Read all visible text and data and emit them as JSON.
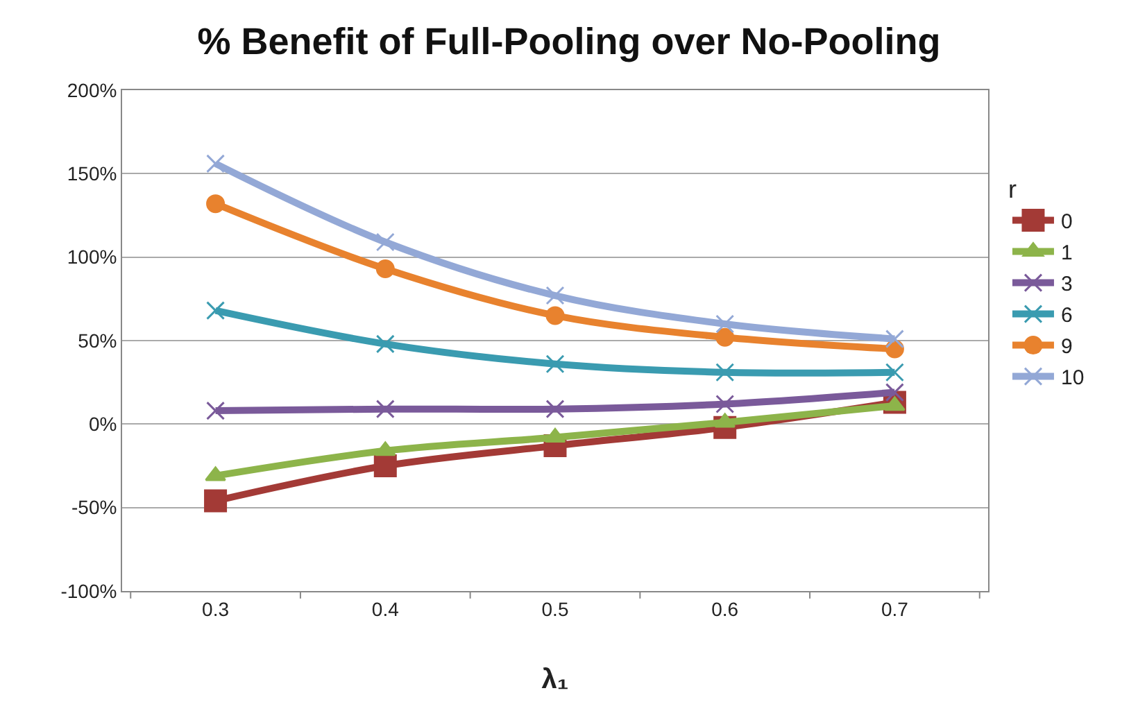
{
  "chart_data": {
    "type": "line",
    "title": "% Benefit of Full-Pooling over No-Pooling",
    "xlabel": "λ₁",
    "legend_title": "r",
    "legend": "right",
    "grid": "y",
    "line_style": "solid",
    "categories": [
      "0.3",
      "0.4",
      "0.5",
      "0.6",
      "0.7"
    ],
    "ylim": [
      -100,
      200
    ],
    "yticks": [
      {
        "value": -100,
        "label": "-100%"
      },
      {
        "value": -50,
        "label": "-50%"
      },
      {
        "value": 0,
        "label": "0%"
      },
      {
        "value": 50,
        "label": "50%"
      },
      {
        "value": 100,
        "label": "100%"
      },
      {
        "value": 150,
        "label": "150%"
      },
      {
        "value": 200,
        "label": "200%"
      }
    ],
    "series": [
      {
        "name": "0",
        "color": "#a33a36",
        "marker": "square",
        "values": [
          -46,
          -25,
          -13,
          -2,
          13
        ]
      },
      {
        "name": "1",
        "color": "#8db44a",
        "marker": "triangle",
        "values": [
          -31,
          -16,
          -8,
          1,
          11
        ]
      },
      {
        "name": "3",
        "color": "#7a5a9a",
        "marker": "cross",
        "values": [
          8,
          9,
          9,
          12,
          19
        ]
      },
      {
        "name": "6",
        "color": "#3a9bb0",
        "marker": "cross",
        "values": [
          68,
          48,
          36,
          31,
          31
        ]
      },
      {
        "name": "9",
        "color": "#e8822e",
        "marker": "circle",
        "values": [
          132,
          93,
          65,
          52,
          45
        ]
      },
      {
        "name": "10",
        "color": "#93a8d6",
        "marker": "cross",
        "values": [
          156,
          109,
          77,
          60,
          51
        ]
      }
    ]
  }
}
